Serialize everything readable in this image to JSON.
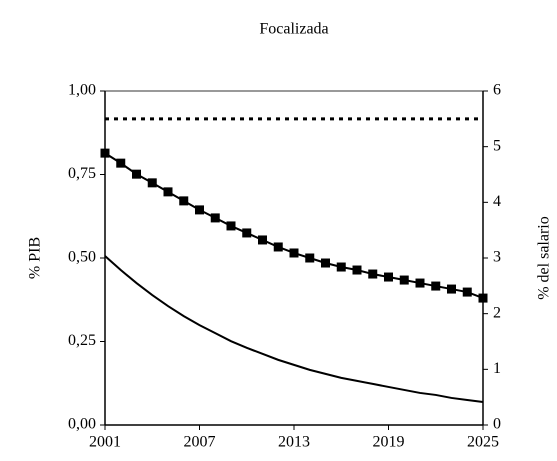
{
  "chart_data": {
    "type": "line",
    "title": "Focalizada",
    "y_label": "% PIB",
    "y2_label": "% del salario",
    "x": [
      2001,
      2002,
      2003,
      2004,
      2005,
      2006,
      2007,
      2008,
      2009,
      2010,
      2011,
      2012,
      2013,
      2014,
      2015,
      2016,
      2017,
      2018,
      2019,
      2020,
      2021,
      2022,
      2023,
      2024,
      2025
    ],
    "xlim": [
      2001,
      2025
    ],
    "xticks": [
      2001,
      2007,
      2013,
      2019,
      2025
    ],
    "ylim": [
      0,
      1
    ],
    "yticks": [
      {
        "value": 0,
        "label": "0,00"
      },
      {
        "value": 0.25,
        "label": "0,25"
      },
      {
        "value": 0.5,
        "label": "0,50"
      },
      {
        "value": 0.75,
        "label": "0,75"
      },
      {
        "value": 1,
        "label": "1,00"
      }
    ],
    "y2lim": [
      0,
      6
    ],
    "y2ticks": [
      0,
      1,
      2,
      3,
      4,
      5,
      6
    ],
    "series": [
      {
        "color": "#000000",
        "marker": "square",
        "dash": "solid",
        "values": [
          0.814,
          0.784,
          0.751,
          0.725,
          0.698,
          0.671,
          0.644,
          0.62,
          0.596,
          0.575,
          0.554,
          0.533,
          0.515,
          0.5,
          0.485,
          0.473,
          0.464,
          0.452,
          0.443,
          0.434,
          0.425,
          0.416,
          0.407,
          0.398,
          0.38
        ]
      },
      {
        "color": "#000000",
        "marker": "none",
        "dash": "solid",
        "values": [
          0.506,
          0.464,
          0.425,
          0.389,
          0.356,
          0.326,
          0.299,
          0.275,
          0.251,
          0.231,
          0.213,
          0.195,
          0.18,
          0.165,
          0.153,
          0.141,
          0.132,
          0.123,
          0.114,
          0.105,
          0.096,
          0.09,
          0.081,
          0.075,
          0.069
        ]
      },
      {
        "color": "#000000",
        "marker": "none",
        "dash": "dotted",
        "axis": "y2",
        "values": [
          5.5,
          5.5,
          5.5,
          5.5,
          5.5,
          5.5,
          5.5,
          5.5,
          5.5,
          5.5,
          5.5,
          5.5,
          5.5,
          5.5,
          5.5,
          5.5,
          5.5,
          5.5,
          5.5,
          5.5,
          5.5,
          5.5,
          5.5,
          5.5,
          5.5
        ]
      }
    ]
  }
}
